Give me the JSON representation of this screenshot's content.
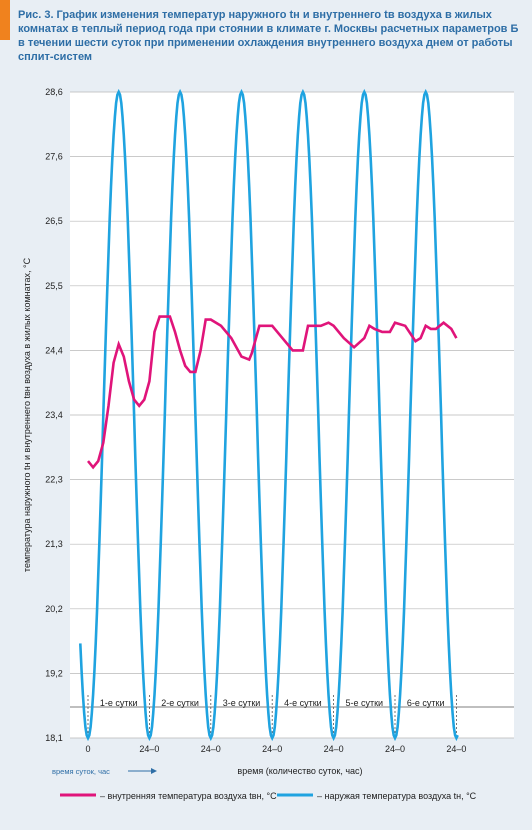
{
  "figure": {
    "title": "Рис. 3. График изменения температур наружного tн и внутреннего tв воздуха в жилых комнатах в теплый период года при стоянии в климате г. Москвы расчетных параметров Б в течении шести суток при применении охлаждения внутреннего воздуха днем от работы сплит-систем"
  },
  "chart_data": {
    "type": "line",
    "ylabel": "температура наружного tн и внутреннего tвн воздуха в жилых комнатах, °C",
    "xlabel": "время (количество суток, час)",
    "x_small_label": "время суток, час",
    "ylim": [
      18.1,
      28.6
    ],
    "y_ticks": [
      "28,6",
      "27,6",
      "26,5",
      "25,5",
      "24,4",
      "23,4",
      "22,3",
      "21,3",
      "20,2",
      "19,2",
      "18,1"
    ],
    "x_ticks": [
      "0",
      "24–0",
      "24–0",
      "24–0",
      "24–0",
      "24–0",
      "24–0"
    ],
    "day_labels": [
      "1-е сутки",
      "2-е сутки",
      "3-е сутки",
      "4-е сутки",
      "5-е сутки",
      "6-е сутки"
    ],
    "grid": true,
    "legend_position": "bottom",
    "series": [
      {
        "name": "– внутренняя температура воздуха tвн, °C",
        "color": "#e0147a",
        "x": [
          0,
          2,
          4,
          6,
          8,
          10,
          12,
          14,
          16,
          18,
          20,
          22,
          24,
          26,
          28,
          30,
          32,
          34,
          36,
          38,
          40,
          42,
          44,
          46,
          48,
          52,
          56,
          60,
          63,
          64,
          67,
          70,
          72,
          76,
          80,
          84,
          86,
          88,
          91,
          94,
          96,
          100,
          104,
          108,
          110,
          112,
          115,
          118,
          120,
          124,
          128,
          130,
          132,
          134,
          136,
          139,
          142,
          144
        ],
        "y": [
          22.6,
          22.5,
          22.6,
          22.9,
          23.5,
          24.2,
          24.5,
          24.3,
          23.9,
          23.6,
          23.5,
          23.6,
          23.9,
          24.7,
          24.95,
          24.95,
          24.95,
          24.7,
          24.4,
          24.15,
          24.05,
          24.05,
          24.4,
          24.9,
          24.9,
          24.8,
          24.6,
          24.3,
          24.25,
          24.35,
          24.8,
          24.8,
          24.8,
          24.6,
          24.4,
          24.4,
          24.8,
          24.8,
          24.8,
          24.85,
          24.8,
          24.6,
          24.45,
          24.6,
          24.8,
          24.75,
          24.7,
          24.7,
          24.85,
          24.8,
          24.55,
          24.6,
          24.8,
          24.75,
          24.75,
          24.85,
          24.75,
          24.6
        ]
      },
      {
        "name": "– наружая температура воздуха tн, °C",
        "color": "#1fa3e0",
        "period_hours": 24,
        "min": 18.1,
        "max": 28.6,
        "min_at_hour": 0,
        "max_at_hour": 12
      }
    ]
  }
}
